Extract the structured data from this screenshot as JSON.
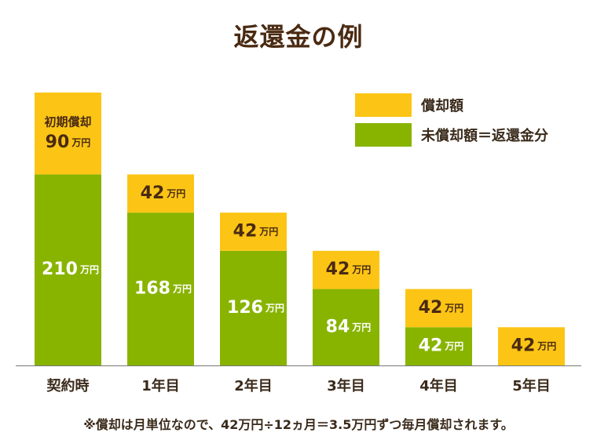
{
  "title": "返還金の例",
  "note": "※償却は月単位なので、42万円÷12ヵ月＝3.5万円ずつ毎月償却されます。",
  "colors": {
    "amortized": "#fcc515",
    "unamortized": "#88b400",
    "text_dark": "#4a2a12",
    "text_light": "#ffffff"
  },
  "legend": [
    {
      "label": "償却額",
      "color": "#fcc515"
    },
    {
      "label": "未償却額＝返還金分",
      "color": "#88b400"
    }
  ],
  "chart_data": {
    "type": "bar",
    "stacked": true,
    "categories": [
      "契約時",
      "1年目",
      "2年目",
      "3年目",
      "4年目",
      "5年目"
    ],
    "series": [
      {
        "name": "未償却額＝返還金分",
        "values": [
          210,
          168,
          126,
          84,
          42,
          0
        ],
        "labels": [
          "210",
          "168",
          "126",
          "84",
          "42",
          ""
        ],
        "unit": "万円"
      },
      {
        "name": "償却額",
        "values": [
          90,
          42,
          42,
          42,
          42,
          42
        ],
        "labels": [
          "90",
          "42",
          "42",
          "42",
          "42",
          "42"
        ],
        "unit": "万円"
      }
    ],
    "first_bar_top_caption": "初期償却",
    "ylim": [
      0,
      300
    ],
    "grid": false,
    "legend_position": "top-right"
  }
}
